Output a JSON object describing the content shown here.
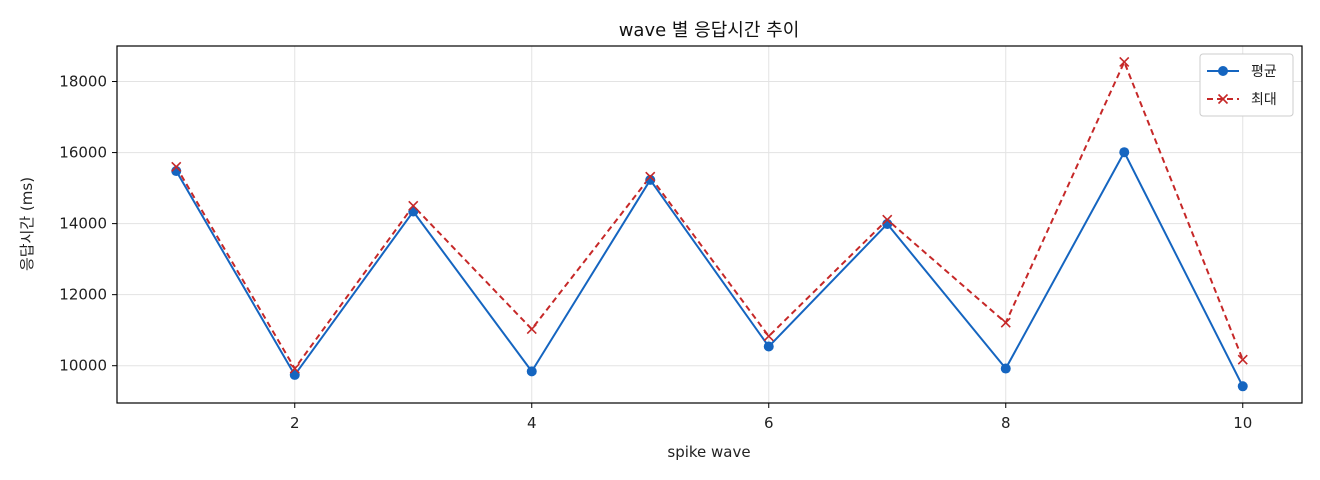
{
  "chart_data": {
    "type": "line",
    "title": "wave 별 응답시간 추이",
    "xlabel": "spike wave",
    "ylabel": "응답시간 (ms)",
    "x": [
      1,
      2,
      3,
      4,
      5,
      6,
      7,
      8,
      9,
      10
    ],
    "xlim": [
      0.5,
      10.5
    ],
    "ylim": [
      8950,
      19000
    ],
    "xticks": [
      2,
      4,
      6,
      8,
      10
    ],
    "yticks": [
      10000,
      12000,
      14000,
      16000,
      18000
    ],
    "grid": true,
    "legend_position": "top-right",
    "series": [
      {
        "name": "평균",
        "color": "#1565c0",
        "line_style": "solid",
        "marker": "circle",
        "values": [
          15480,
          9740,
          14340,
          9840,
          15230,
          10540,
          13990,
          9920,
          16010,
          9420
        ]
      },
      {
        "name": "최대",
        "color": "#c62828",
        "line_style": "dashed",
        "marker": "x",
        "values": [
          15600,
          9920,
          14500,
          11030,
          15320,
          10830,
          14110,
          11210,
          18550,
          10170
        ]
      }
    ]
  }
}
